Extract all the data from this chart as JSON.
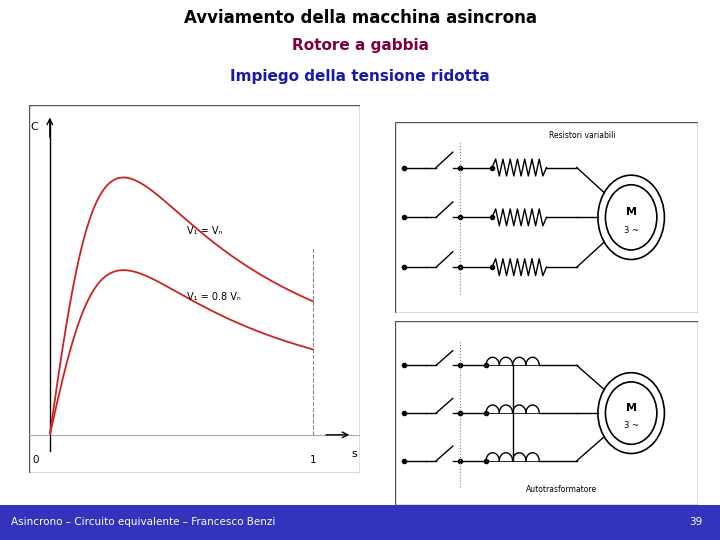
{
  "title_line1": "Avviamento della macchina asincrona",
  "title_line2": "Rotore a gabbia",
  "title_line3": "Impiego della tensione ridotta",
  "title_color1": "#000000",
  "title_color2": "#7b003c",
  "title_color3": "#1a1aaa",
  "footer_text": "Asincrono – Circuito equivalente – Francesco Benzi",
  "footer_number": "39",
  "footer_bg": "#3333bb",
  "footer_fg": "#ffffff",
  "bg_color": "#ffffff",
  "curve1_label": "V₁ = Vₙ",
  "curve2_label": "V₁ = 0.8 Vₙ",
  "graph_label_c": "C",
  "graph_label_s": "s",
  "graph_label_0": "0",
  "graph_label_1": "1",
  "resistori_label": "Resistori variabili",
  "autotrasf_label": "Autotrasformatore",
  "curve_color": "#cc2222"
}
